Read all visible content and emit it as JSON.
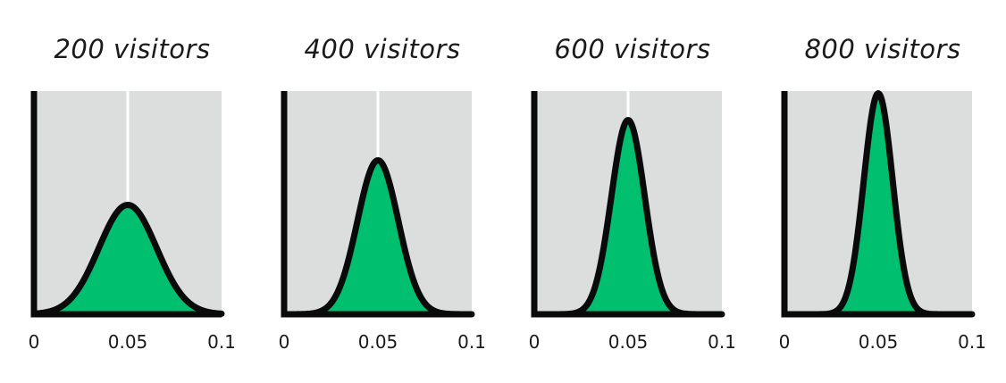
{
  "colors": {
    "panel_background": "#dcdedd",
    "fill": "#00bf6f",
    "outline": "#0a0a0a",
    "reference_line": "#ffffff"
  },
  "chart_data": [
    {
      "type": "area",
      "title": "200 visitors",
      "xlim": [
        0,
        0.1
      ],
      "x_ticks": [
        "0",
        "0.05",
        "0.1"
      ],
      "reference_x": 0.05,
      "distribution": {
        "mean": 0.05,
        "sd": 0.0154,
        "peak_fraction_of_height": 0.49
      }
    },
    {
      "type": "area",
      "title": "400 visitors",
      "xlim": [
        0,
        0.1
      ],
      "x_ticks": [
        "0",
        "0.05",
        "0.1"
      ],
      "reference_x": 0.05,
      "distribution": {
        "mean": 0.05,
        "sd": 0.0109,
        "peak_fraction_of_height": 0.69
      }
    },
    {
      "type": "area",
      "title": "600 visitors",
      "xlim": [
        0,
        0.1
      ],
      "x_ticks": [
        "0",
        "0.05",
        "0.1"
      ],
      "reference_x": 0.05,
      "distribution": {
        "mean": 0.05,
        "sd": 0.0089,
        "peak_fraction_of_height": 0.87
      }
    },
    {
      "type": "area",
      "title": "800 visitors",
      "xlim": [
        0,
        0.1
      ],
      "x_ticks": [
        "0",
        "0.05",
        "0.1"
      ],
      "reference_x": 0.05,
      "distribution": {
        "mean": 0.05,
        "sd": 0.0077,
        "peak_fraction_of_height": 0.99
      }
    }
  ]
}
